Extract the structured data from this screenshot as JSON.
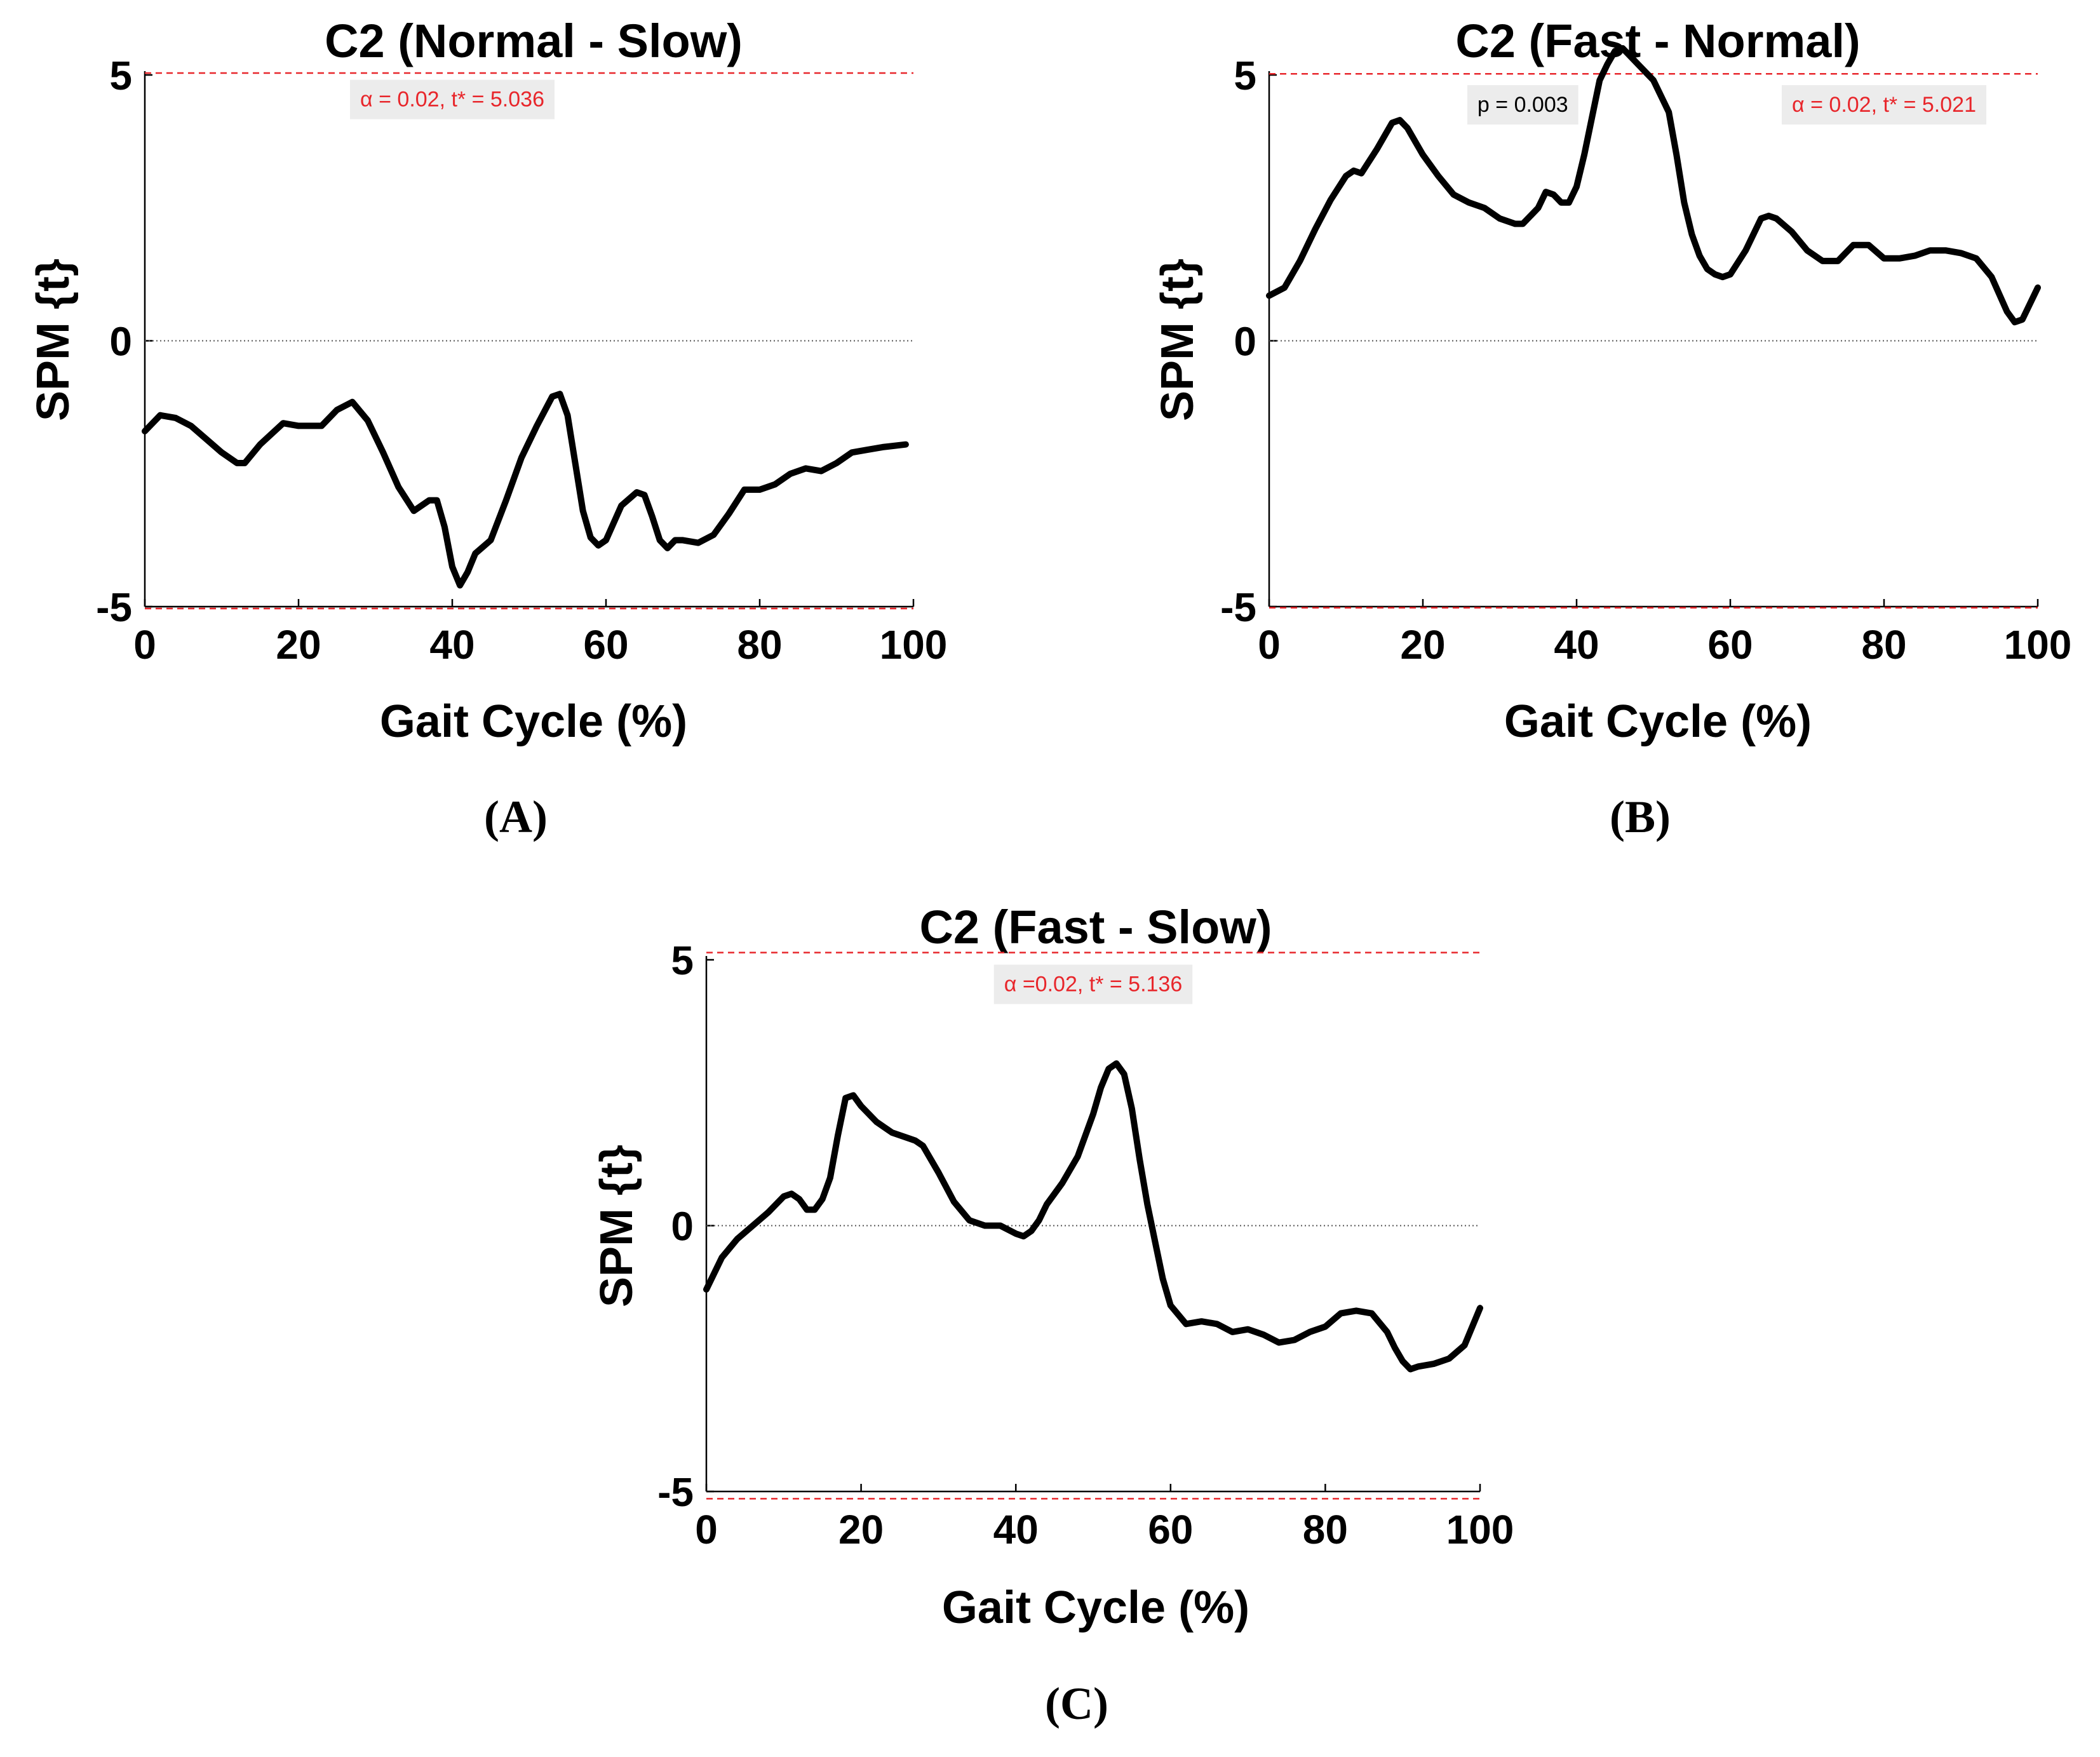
{
  "figure": {
    "panels": [
      {
        "id": "A",
        "letter": "(A)"
      },
      {
        "id": "B",
        "letter": "(B)"
      },
      {
        "id": "C",
        "letter": "(C)"
      }
    ]
  },
  "colors": {
    "curve": "#000000",
    "threshold": "#e8262b",
    "zero_line": "#555555",
    "annotation_bg": "#ececec",
    "annotation_red": "#e8262b",
    "annotation_black": "#000000"
  },
  "chart_data": [
    {
      "type": "line",
      "title": "C2 (Normal - Slow)",
      "xlabel": "Gait Cycle (%)",
      "ylabel": "SPM {t}",
      "xlim": [
        0,
        100
      ],
      "ylim": [
        -5,
        5
      ],
      "xticks": [
        0,
        20,
        40,
        60,
        80,
        100
      ],
      "yticks": [
        -5,
        0,
        5
      ],
      "threshold": 5.036,
      "annotations": [
        {
          "label": "α  = 0.02,     t* = 5.036",
          "color": "red",
          "x": 40,
          "y": 4.55
        }
      ],
      "series": [
        {
          "name": "SPM{t}",
          "x": [
            0,
            2,
            4,
            6,
            8,
            10,
            12,
            13,
            15,
            18,
            20,
            23,
            25,
            27,
            29,
            31,
            33,
            35,
            37,
            38,
            39,
            40,
            41,
            42,
            43,
            45,
            47,
            49,
            51,
            53,
            54,
            55,
            56,
            57,
            58,
            59,
            60,
            62,
            64,
            65,
            66,
            67,
            68,
            69,
            70,
            72,
            74,
            76,
            78,
            80,
            82,
            84,
            86,
            88,
            90,
            92,
            94,
            96,
            99
          ],
          "y": [
            -1.7,
            -1.4,
            -1.45,
            -1.6,
            -1.85,
            -2.1,
            -2.3,
            -2.3,
            -1.95,
            -1.55,
            -1.6,
            -1.6,
            -1.3,
            -1.15,
            -1.5,
            -2.1,
            -2.75,
            -3.2,
            -3.0,
            -3.0,
            -3.5,
            -4.25,
            -4.6,
            -4.35,
            -4.0,
            -3.75,
            -3.0,
            -2.2,
            -1.6,
            -1.05,
            -1.0,
            -1.4,
            -2.3,
            -3.2,
            -3.7,
            -3.85,
            -3.75,
            -3.1,
            -2.85,
            -2.9,
            -3.3,
            -3.75,
            -3.9,
            -3.75,
            -3.75,
            -3.8,
            -3.65,
            -3.25,
            -2.8,
            -2.8,
            -2.7,
            -2.5,
            -2.4,
            -2.45,
            -2.3,
            -2.1,
            -2.05,
            -2.0,
            -1.95
          ]
        }
      ]
    },
    {
      "type": "line",
      "title": "C2 (Fast - Normal)",
      "xlabel": "Gait Cycle (%)",
      "ylabel": "SPM {t}",
      "xlim": [
        0,
        100
      ],
      "ylim": [
        -5,
        5
      ],
      "xticks": [
        0,
        20,
        40,
        60,
        80,
        100
      ],
      "yticks": [
        -5,
        0,
        5
      ],
      "threshold": 5.021,
      "annotations": [
        {
          "label": "p = 0.003",
          "color": "black",
          "x": 33,
          "y": 4.45
        },
        {
          "label": "α  = 0.02,     t* = 5.021",
          "color": "red",
          "x": 80,
          "y": 4.45
        }
      ],
      "series": [
        {
          "name": "SPM{t}",
          "x": [
            0,
            2,
            4,
            6,
            8,
            10,
            11,
            12,
            14,
            16,
            17,
            18,
            20,
            22,
            24,
            26,
            28,
            30,
            32,
            33,
            35,
            36,
            37,
            38,
            39,
            40,
            41,
            42,
            43,
            44,
            45,
            46,
            47,
            48,
            50,
            52,
            53,
            54,
            55,
            56,
            57,
            58,
            59,
            60,
            62,
            64,
            65,
            66,
            68,
            70,
            72,
            74,
            76,
            78,
            80,
            82,
            84,
            86,
            88,
            90,
            92,
            94,
            96,
            97,
            98,
            100
          ],
          "y": [
            0.85,
            1.0,
            1.5,
            2.1,
            2.65,
            3.1,
            3.2,
            3.15,
            3.6,
            4.1,
            4.15,
            4.0,
            3.5,
            3.1,
            2.75,
            2.6,
            2.5,
            2.3,
            2.2,
            2.2,
            2.5,
            2.8,
            2.75,
            2.6,
            2.6,
            2.9,
            3.5,
            4.2,
            4.9,
            5.2,
            5.45,
            5.5,
            5.35,
            5.2,
            4.9,
            4.3,
            3.5,
            2.6,
            2.0,
            1.6,
            1.35,
            1.25,
            1.2,
            1.25,
            1.7,
            2.3,
            2.35,
            2.3,
            2.05,
            1.7,
            1.5,
            1.5,
            1.8,
            1.8,
            1.55,
            1.55,
            1.6,
            1.7,
            1.7,
            1.65,
            1.55,
            1.2,
            0.55,
            0.35,
            0.4,
            1.0
          ]
        }
      ]
    },
    {
      "type": "line",
      "title": "C2 (Fast - Slow)",
      "xlabel": "Gait Cycle (%)",
      "ylabel": "SPM {t}",
      "xlim": [
        0,
        100
      ],
      "ylim": [
        -5,
        5
      ],
      "xticks": [
        0,
        20,
        40,
        60,
        80,
        100
      ],
      "yticks": [
        -5,
        0,
        5
      ],
      "threshold": 5.136,
      "annotations": [
        {
          "label": "α  =0.02,     t* = 5.136",
          "color": "red",
          "x": 50,
          "y": 4.55
        }
      ],
      "series": [
        {
          "name": "SPM{t}",
          "x": [
            0,
            2,
            4,
            6,
            8,
            10,
            11,
            12,
            13,
            14,
            15,
            16,
            17,
            18,
            19,
            20,
            22,
            24,
            26,
            27,
            28,
            30,
            32,
            34,
            36,
            38,
            40,
            41,
            42,
            43,
            44,
            46,
            48,
            50,
            51,
            52,
            53,
            54,
            55,
            56,
            57,
            58,
            59,
            60,
            62,
            64,
            66,
            68,
            70,
            72,
            74,
            76,
            78,
            80,
            82,
            84,
            86,
            88,
            89,
            90,
            91,
            92,
            94,
            96,
            98,
            100
          ],
          "y": [
            -1.2,
            -0.6,
            -0.25,
            0.0,
            0.25,
            0.55,
            0.6,
            0.5,
            0.3,
            0.3,
            0.5,
            0.9,
            1.7,
            2.4,
            2.45,
            2.25,
            1.95,
            1.75,
            1.65,
            1.6,
            1.5,
            1.0,
            0.45,
            0.1,
            0.0,
            0.0,
            -0.15,
            -0.2,
            -0.1,
            0.1,
            0.4,
            0.8,
            1.3,
            2.1,
            2.6,
            2.95,
            3.05,
            2.85,
            2.2,
            1.25,
            0.4,
            -0.3,
            -1.0,
            -1.5,
            -1.85,
            -1.8,
            -1.85,
            -2.0,
            -1.95,
            -2.05,
            -2.2,
            -2.15,
            -2.0,
            -1.9,
            -1.65,
            -1.6,
            -1.65,
            -2.0,
            -2.3,
            -2.55,
            -2.7,
            -2.65,
            -2.6,
            -2.5,
            -2.25,
            -1.55
          ]
        }
      ]
    }
  ]
}
